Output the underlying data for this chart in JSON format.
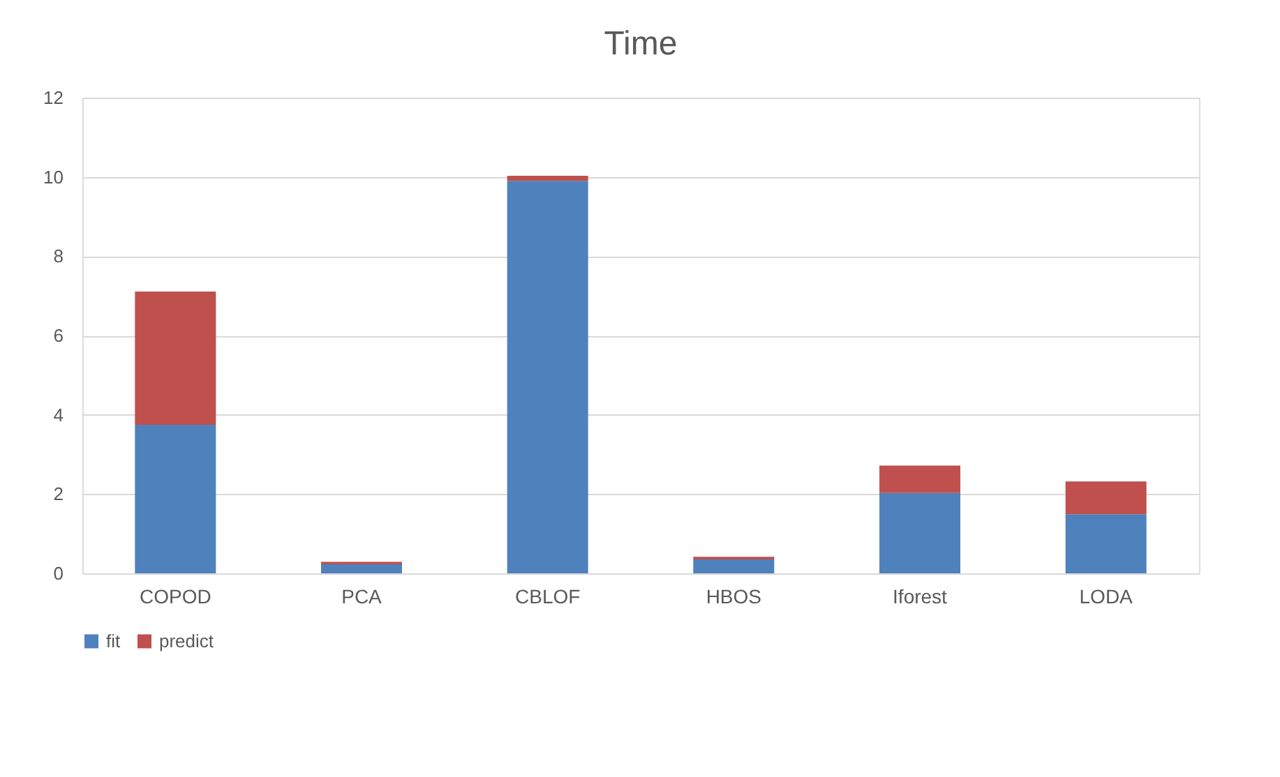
{
  "chart_data": {
    "type": "bar",
    "title": "Time",
    "stacked": true,
    "categories": [
      "COPOD",
      "PCA",
      "CBLOF",
      "HBOS",
      "Iforest",
      "LODA"
    ],
    "series": [
      {
        "name": "fit",
        "color": "#4f81bd",
        "values": [
          3.75,
          0.23,
          9.9,
          0.35,
          2.03,
          1.49
        ]
      },
      {
        "name": "predict",
        "color": "#c0504d",
        "values": [
          3.36,
          0.06,
          0.13,
          0.07,
          0.69,
          0.83
        ]
      }
    ],
    "ylim": [
      0,
      12
    ],
    "yticks": [
      0,
      2,
      4,
      6,
      8,
      10,
      12
    ],
    "grid": "y",
    "legend": "bottom"
  }
}
